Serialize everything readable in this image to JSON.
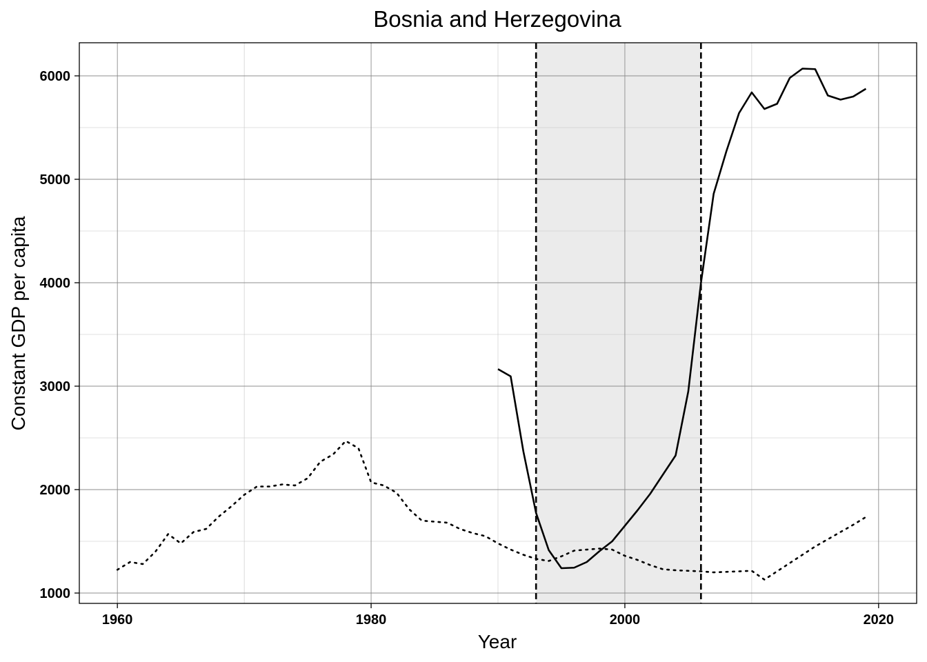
{
  "chart_data": {
    "type": "line",
    "title": "Bosnia and Herzegovina",
    "xlabel": "Year",
    "ylabel": "Constant GDP per capita",
    "xlim": [
      1957,
      2023
    ],
    "ylim": [
      900,
      6320
    ],
    "x_ticks": [
      1960,
      1980,
      2000,
      2020
    ],
    "y_ticks": [
      1000,
      2000,
      3000,
      4000,
      5000,
      6000
    ],
    "grid": true,
    "legend": "none",
    "shaded_period": {
      "start": 1993,
      "end": 2006,
      "color": "#ebebeb"
    },
    "vertical_lines": [
      1993,
      2006
    ],
    "series": [
      {
        "style": "solid",
        "color": "#000000",
        "x": [
          1990,
          1991,
          1992,
          1993,
          1994,
          1995,
          1996,
          1997,
          1998,
          1999,
          2000,
          2001,
          2002,
          2003,
          2004,
          2005,
          2006,
          2007,
          2008,
          2009,
          2010,
          2011,
          2012,
          2013,
          2014,
          2015,
          2016,
          2017,
          2018,
          2019
        ],
        "y": [
          3165,
          3095,
          2370,
          1775,
          1415,
          1240,
          1245,
          1300,
          1405,
          1500,
          1650,
          1800,
          1960,
          2145,
          2330,
          2950,
          4000,
          4860,
          5270,
          5640,
          5840,
          5680,
          5730,
          5980,
          6070,
          6065,
          5810,
          5770,
          5800,
          5875
        ]
      },
      {
        "style": "dotted",
        "color": "#000000",
        "x": [
          1960,
          1961,
          1962,
          1963,
          1964,
          1965,
          1966,
          1967,
          1968,
          1969,
          1970,
          1971,
          1972,
          1973,
          1974,
          1975,
          1976,
          1977,
          1978,
          1979,
          1980,
          1981,
          1982,
          1983,
          1984,
          1985,
          1986,
          1987,
          1988,
          1989,
          1990,
          1991,
          1992,
          1993,
          1994,
          1995,
          1996,
          1997,
          1998,
          1999,
          2000,
          2001,
          2002,
          2003,
          2004,
          2005,
          2006,
          2007,
          2008,
          2009,
          2010,
          2011,
          2012,
          2013,
          2014,
          2015,
          2016,
          2017,
          2018,
          2019
        ],
        "y": [
          1225,
          1300,
          1280,
          1400,
          1570,
          1480,
          1590,
          1620,
          1740,
          1840,
          1950,
          2030,
          2030,
          2050,
          2040,
          2110,
          2270,
          2340,
          2470,
          2400,
          2070,
          2040,
          1970,
          1810,
          1700,
          1690,
          1680,
          1620,
          1580,
          1550,
          1480,
          1420,
          1370,
          1330,
          1310,
          1355,
          1410,
          1420,
          1430,
          1420,
          1360,
          1320,
          1270,
          1230,
          1220,
          1215,
          1210,
          1200,
          1205,
          1210,
          1215,
          1130,
          1210,
          1290,
          1370,
          1450,
          1520,
          1590,
          1660,
          1735
        ]
      }
    ]
  }
}
